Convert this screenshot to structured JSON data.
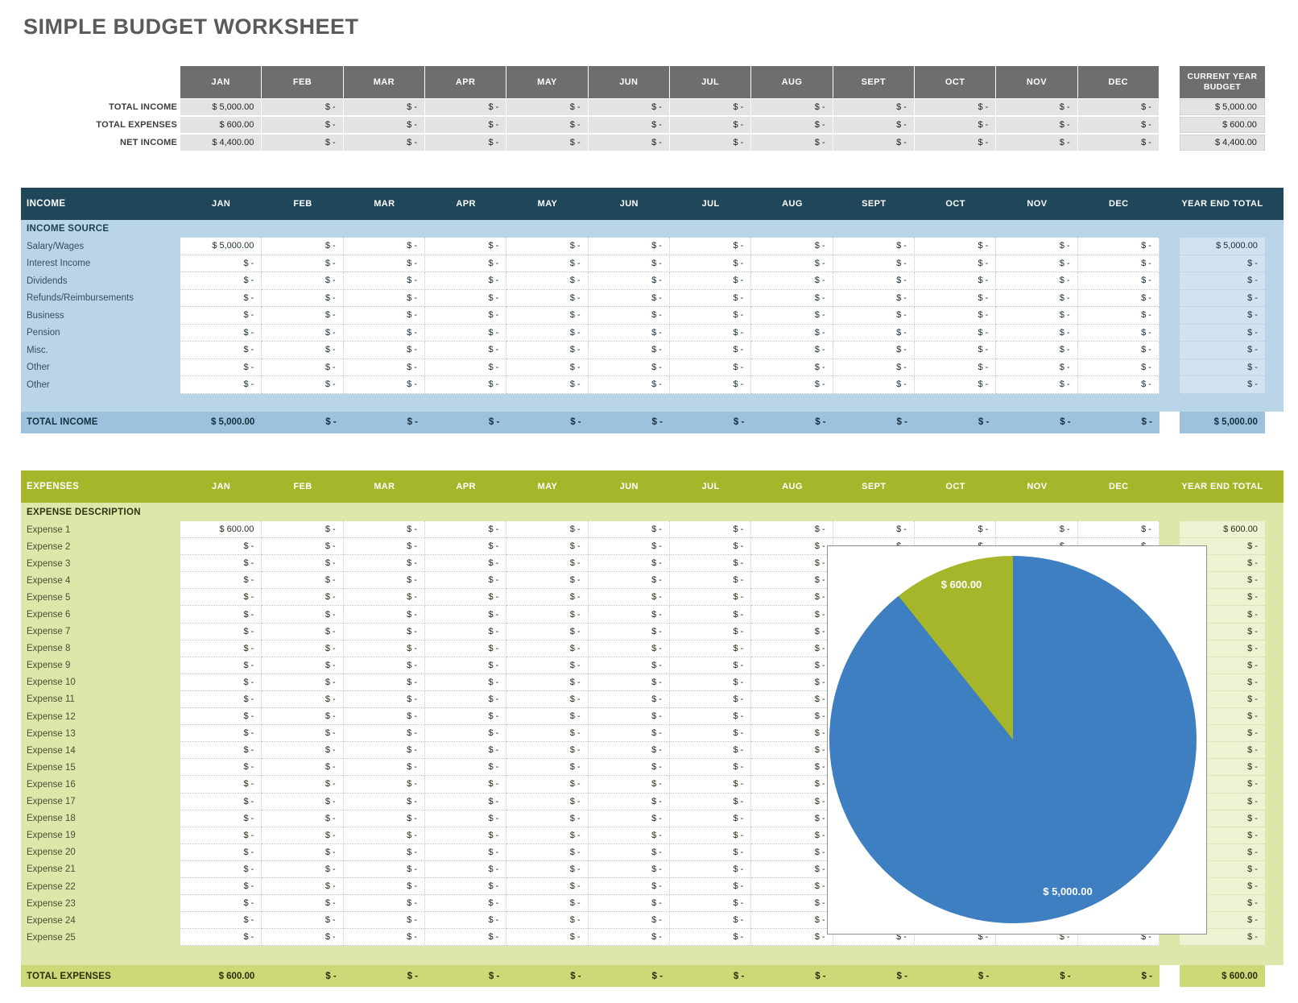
{
  "title": "SIMPLE BUDGET WORKSHEET",
  "months": [
    "JAN",
    "FEB",
    "MAR",
    "APR",
    "MAY",
    "JUN",
    "JUL",
    "AUG",
    "SEPT",
    "OCT",
    "NOV",
    "DEC"
  ],
  "summary": {
    "budget_header": "CURRENT YEAR BUDGET",
    "rows": [
      {
        "label": "TOTAL INCOME",
        "values": [
          "$ 5,000.00",
          "$ -",
          "$ -",
          "$ -",
          "$ -",
          "$ -",
          "$ -",
          "$ -",
          "$ -",
          "$ -",
          "$ -",
          "$ -"
        ],
        "year_end": "$ 5,000.00"
      },
      {
        "label": "TOTAL EXPENSES",
        "values": [
          "$ 600.00",
          "$ -",
          "$ -",
          "$ -",
          "$ -",
          "$ -",
          "$ -",
          "$ -",
          "$ -",
          "$ -",
          "$ -",
          "$ -"
        ],
        "year_end": "$ 600.00"
      },
      {
        "label": "NET INCOME",
        "values": [
          "$ 4,400.00",
          "$ -",
          "$ -",
          "$ -",
          "$ -",
          "$ -",
          "$ -",
          "$ -",
          "$ -",
          "$ -",
          "$ -",
          "$ -"
        ],
        "year_end": "$ 4,400.00"
      }
    ]
  },
  "income": {
    "title": "INCOME",
    "year_end_label": "YEAR END TOTAL",
    "subheader": "INCOME SOURCE",
    "rows": [
      {
        "label": "Salary/Wages",
        "values": [
          "$ 5,000.00",
          "$ -",
          "$ -",
          "$ -",
          "$ -",
          "$ -",
          "$ -",
          "$ -",
          "$ -",
          "$ -",
          "$ -",
          "$ -"
        ],
        "year_end": "$ 5,000.00"
      },
      {
        "label": "Interest Income",
        "values": [
          "$ -",
          "$ -",
          "$ -",
          "$ -",
          "$ -",
          "$ -",
          "$ -",
          "$ -",
          "$ -",
          "$ -",
          "$ -",
          "$ -"
        ],
        "year_end": "$ -"
      },
      {
        "label": "Dividends",
        "values": [
          "$ -",
          "$ -",
          "$ -",
          "$ -",
          "$ -",
          "$ -",
          "$ -",
          "$ -",
          "$ -",
          "$ -",
          "$ -",
          "$ -"
        ],
        "year_end": "$ -"
      },
      {
        "label": "Refunds/Reimbursements",
        "values": [
          "$ -",
          "$ -",
          "$ -",
          "$ -",
          "$ -",
          "$ -",
          "$ -",
          "$ -",
          "$ -",
          "$ -",
          "$ -",
          "$ -"
        ],
        "year_end": "$ -"
      },
      {
        "label": "Business",
        "values": [
          "$ -",
          "$ -",
          "$ -",
          "$ -",
          "$ -",
          "$ -",
          "$ -",
          "$ -",
          "$ -",
          "$ -",
          "$ -",
          "$ -"
        ],
        "year_end": "$ -"
      },
      {
        "label": "Pension",
        "values": [
          "$ -",
          "$ -",
          "$ -",
          "$ -",
          "$ -",
          "$ -",
          "$ -",
          "$ -",
          "$ -",
          "$ -",
          "$ -",
          "$ -"
        ],
        "year_end": "$ -"
      },
      {
        "label": "Misc.",
        "values": [
          "$ -",
          "$ -",
          "$ -",
          "$ -",
          "$ -",
          "$ -",
          "$ -",
          "$ -",
          "$ -",
          "$ -",
          "$ -",
          "$ -"
        ],
        "year_end": "$ -"
      },
      {
        "label": "Other",
        "values": [
          "$ -",
          "$ -",
          "$ -",
          "$ -",
          "$ -",
          "$ -",
          "$ -",
          "$ -",
          "$ -",
          "$ -",
          "$ -",
          "$ -"
        ],
        "year_end": "$ -"
      },
      {
        "label": "Other",
        "values": [
          "$ -",
          "$ -",
          "$ -",
          "$ -",
          "$ -",
          "$ -",
          "$ -",
          "$ -",
          "$ -",
          "$ -",
          "$ -",
          "$ -"
        ],
        "year_end": "$ -"
      }
    ],
    "totals": [
      {
        "label": "TOTAL INCOME",
        "values": [
          "$ 5,000.00",
          "$ -",
          "$ -",
          "$ -",
          "$ -",
          "$ -",
          "$ -",
          "$ -",
          "$ -",
          "$ -",
          "$ -",
          "$ -"
        ],
        "year_end": "$ 5,000.00"
      }
    ]
  },
  "expenses": {
    "title": "EXPENSES",
    "year_end_label": "YEAR END TOTAL",
    "subheader": "EXPENSE DESCRIPTION",
    "rows": [
      {
        "label": "Expense 1",
        "values": [
          "$ 600.00",
          "$ -",
          "$ -",
          "$ -",
          "$ -",
          "$ -",
          "$ -",
          "$ -",
          "$ -",
          "$ -",
          "$ -",
          "$ -"
        ],
        "year_end": "$ 600.00"
      },
      {
        "label": "Expense 2",
        "values": [
          "$ -",
          "$ -",
          "$ -",
          "$ -",
          "$ -",
          "$ -",
          "$ -",
          "$ -",
          "$ -",
          "$ -",
          "$ -",
          "$ -"
        ],
        "year_end": "$ -"
      },
      {
        "label": "Expense 3",
        "values": [
          "$ -",
          "$ -",
          "$ -",
          "$ -",
          "$ -",
          "$ -",
          "$ -",
          "$ -",
          "$ -",
          "$ -",
          "$ -",
          "$ -"
        ],
        "year_end": "$ -"
      },
      {
        "label": "Expense 4",
        "values": [
          "$ -",
          "$ -",
          "$ -",
          "$ -",
          "$ -",
          "$ -",
          "$ -",
          "$ -",
          "$ -",
          "$ -",
          "$ -",
          "$ -"
        ],
        "year_end": "$ -"
      },
      {
        "label": "Expense 5",
        "values": [
          "$ -",
          "$ -",
          "$ -",
          "$ -",
          "$ -",
          "$ -",
          "$ -",
          "$ -",
          "$ -",
          "$ -",
          "$ -",
          "$ -"
        ],
        "year_end": "$ -"
      },
      {
        "label": "Expense 6",
        "values": [
          "$ -",
          "$ -",
          "$ -",
          "$ -",
          "$ -",
          "$ -",
          "$ -",
          "$ -",
          "$ -",
          "$ -",
          "$ -",
          "$ -"
        ],
        "year_end": "$ -"
      },
      {
        "label": "Expense 7",
        "values": [
          "$ -",
          "$ -",
          "$ -",
          "$ -",
          "$ -",
          "$ -",
          "$ -",
          "$ -",
          "$ -",
          "$ -",
          "$ -",
          "$ -"
        ],
        "year_end": "$ -"
      },
      {
        "label": "Expense 8",
        "values": [
          "$ -",
          "$ -",
          "$ -",
          "$ -",
          "$ -",
          "$ -",
          "$ -",
          "$ -",
          "$ -",
          "$ -",
          "$ -",
          "$ -"
        ],
        "year_end": "$ -"
      },
      {
        "label": "Expense 9",
        "values": [
          "$ -",
          "$ -",
          "$ -",
          "$ -",
          "$ -",
          "$ -",
          "$ -",
          "$ -",
          "$ -",
          "$ -",
          "$ -",
          "$ -"
        ],
        "year_end": "$ -"
      },
      {
        "label": "Expense 10",
        "values": [
          "$ -",
          "$ -",
          "$ -",
          "$ -",
          "$ -",
          "$ -",
          "$ -",
          "$ -",
          "$ -",
          "$ -",
          "$ -",
          "$ -"
        ],
        "year_end": "$ -"
      },
      {
        "label": "Expense 11",
        "values": [
          "$ -",
          "$ -",
          "$ -",
          "$ -",
          "$ -",
          "$ -",
          "$ -",
          "$ -",
          "$ -",
          "$ -",
          "$ -",
          "$ -"
        ],
        "year_end": "$ -"
      },
      {
        "label": "Expense 12",
        "values": [
          "$ -",
          "$ -",
          "$ -",
          "$ -",
          "$ -",
          "$ -",
          "$ -",
          "$ -",
          "$ -",
          "$ -",
          "$ -",
          "$ -"
        ],
        "year_end": "$ -"
      },
      {
        "label": "Expense 13",
        "values": [
          "$ -",
          "$ -",
          "$ -",
          "$ -",
          "$ -",
          "$ -",
          "$ -",
          "$ -",
          "$ -",
          "$ -",
          "$ -",
          "$ -"
        ],
        "year_end": "$ -"
      },
      {
        "label": "Expense 14",
        "values": [
          "$ -",
          "$ -",
          "$ -",
          "$ -",
          "$ -",
          "$ -",
          "$ -",
          "$ -",
          "$ -",
          "$ -",
          "$ -",
          "$ -"
        ],
        "year_end": "$ -"
      },
      {
        "label": "Expense 15",
        "values": [
          "$ -",
          "$ -",
          "$ -",
          "$ -",
          "$ -",
          "$ -",
          "$ -",
          "$ -",
          "$ -",
          "$ -",
          "$ -",
          "$ -"
        ],
        "year_end": "$ -"
      },
      {
        "label": "Expense 16",
        "values": [
          "$ -",
          "$ -",
          "$ -",
          "$ -",
          "$ -",
          "$ -",
          "$ -",
          "$ -",
          "$ -",
          "$ -",
          "$ -",
          "$ -"
        ],
        "year_end": "$ -"
      },
      {
        "label": "Expense 17",
        "values": [
          "$ -",
          "$ -",
          "$ -",
          "$ -",
          "$ -",
          "$ -",
          "$ -",
          "$ -",
          "$ -",
          "$ -",
          "$ -",
          "$ -"
        ],
        "year_end": "$ -"
      },
      {
        "label": "Expense 18",
        "values": [
          "$ -",
          "$ -",
          "$ -",
          "$ -",
          "$ -",
          "$ -",
          "$ -",
          "$ -",
          "$ -",
          "$ -",
          "$ -",
          "$ -"
        ],
        "year_end": "$ -"
      },
      {
        "label": "Expense 19",
        "values": [
          "$ -",
          "$ -",
          "$ -",
          "$ -",
          "$ -",
          "$ -",
          "$ -",
          "$ -",
          "$ -",
          "$ -",
          "$ -",
          "$ -"
        ],
        "year_end": "$ -"
      },
      {
        "label": "Expense 20",
        "values": [
          "$ -",
          "$ -",
          "$ -",
          "$ -",
          "$ -",
          "$ -",
          "$ -",
          "$ -",
          "$ -",
          "$ -",
          "$ -",
          "$ -"
        ],
        "year_end": "$ -"
      },
      {
        "label": "Expense 21",
        "values": [
          "$ -",
          "$ -",
          "$ -",
          "$ -",
          "$ -",
          "$ -",
          "$ -",
          "$ -",
          "$ -",
          "$ -",
          "$ -",
          "$ -"
        ],
        "year_end": "$ -"
      },
      {
        "label": "Expense 22",
        "values": [
          "$ -",
          "$ -",
          "$ -",
          "$ -",
          "$ -",
          "$ -",
          "$ -",
          "$ -",
          "$ -",
          "$ -",
          "$ -",
          "$ -"
        ],
        "year_end": "$ -"
      },
      {
        "label": "Expense 23",
        "values": [
          "$ -",
          "$ -",
          "$ -",
          "$ -",
          "$ -",
          "$ -",
          "$ -",
          "$ -",
          "$ -",
          "$ -",
          "$ -",
          "$ -"
        ],
        "year_end": "$ -"
      },
      {
        "label": "Expense 24",
        "values": [
          "$ -",
          "$ -",
          "$ -",
          "$ -",
          "$ -",
          "$ -",
          "$ -",
          "$ -",
          "$ -",
          "$ -",
          "$ -",
          "$ -"
        ],
        "year_end": "$ -"
      },
      {
        "label": "Expense 25",
        "values": [
          "$ -",
          "$ -",
          "$ -",
          "$ -",
          "$ -",
          "$ -",
          "$ -",
          "$ -",
          "$ -",
          "$ -",
          "$ -",
          "$ -"
        ],
        "year_end": "$ -"
      }
    ],
    "totals": [
      {
        "label": "TOTAL EXPENSES",
        "values": [
          "$ 600.00",
          "$ -",
          "$ -",
          "$ -",
          "$ -",
          "$ -",
          "$ -",
          "$ -",
          "$ -",
          "$ -",
          "$ -",
          "$ -"
        ],
        "year_end": "$ 600.00"
      }
    ]
  },
  "chart_data": {
    "type": "pie",
    "slices": [
      {
        "label": "$ 5,000.00",
        "value": 5000,
        "color": "#3e7fc1"
      },
      {
        "label": "$ 600.00",
        "value": 600,
        "color": "#a5b62b"
      }
    ],
    "start_angle_deg": 0,
    "direction": "clockwise",
    "legend": "none",
    "data_label_color": "#ffffff"
  },
  "colors": {
    "summary_header_bg": "#6e6e6e",
    "summary_cell_bg": "#e3e3e4",
    "income_header_bg": "#1f4659",
    "income_body_bg": "#bad5e8",
    "income_yearend_cell_bg": "#d2e3f0",
    "income_total_bg": "#9cc2dd",
    "expenses_header_bg": "#a5b62b",
    "expenses_body_bg": "#dee7a9",
    "expenses_yearend_cell_bg": "#eef2d2",
    "expenses_total_bg": "#cdd977",
    "pie_blue": "#3e7fc1",
    "pie_green": "#a5b62b"
  }
}
